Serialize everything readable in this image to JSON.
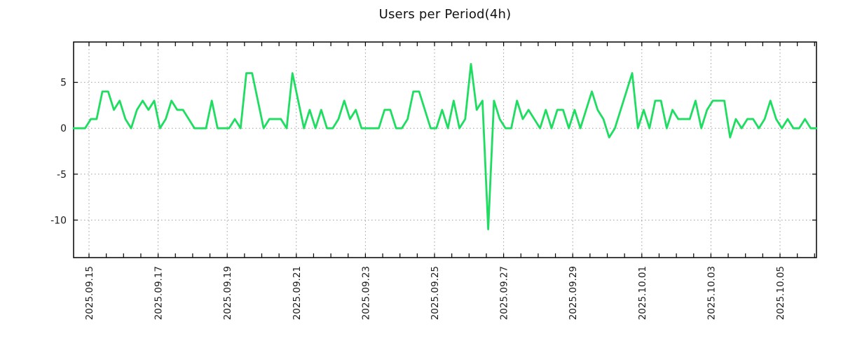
{
  "chart_data": {
    "type": "line",
    "title": "Users per Period(4h)",
    "period_per_point": "4h",
    "series_color": "#1edd60",
    "grid_color": "#9e9e9e",
    "axis_color": "#000000",
    "label_color": "#1a1a1a",
    "x_tick_labels": [
      "2025.09.15",
      "2025.09.17",
      "2025.09.19",
      "2025.09.21",
      "2025.09.23",
      "2025.09.25",
      "2025.09.27",
      "2025.09.29",
      "2025.10.01",
      "2025.10.03",
      "2025.10.05"
    ],
    "y_ticks": [
      5,
      0,
      -5,
      -10
    ],
    "y_tick_labels": [
      "5",
      "0",
      "-5",
      "-10"
    ],
    "ylim": [
      -14.1,
      9.4
    ],
    "grid": true,
    "legend": "none",
    "values": [
      0,
      0,
      0,
      1,
      1,
      4,
      4,
      2,
      3,
      1,
      0,
      2,
      3,
      2,
      3,
      0,
      1,
      3,
      2,
      2,
      1,
      0,
      0,
      0,
      3,
      0,
      0,
      0,
      1,
      0,
      6,
      6,
      3,
      0,
      1,
      1,
      1,
      0,
      6,
      3,
      0,
      2,
      0,
      2,
      0,
      0,
      1,
      3,
      1,
      2,
      0,
      0,
      0,
      0,
      2,
      2,
      0,
      0,
      1,
      4,
      4,
      2,
      0,
      0,
      2,
      0,
      3,
      0,
      1,
      7,
      2,
      3,
      -11,
      3,
      1,
      0,
      0,
      3,
      1,
      2,
      1,
      0,
      2,
      0,
      2,
      2,
      0,
      2,
      0,
      2,
      4,
      2,
      1,
      -1,
      0,
      2,
      4,
      6,
      0,
      2,
      0,
      3,
      3,
      0,
      2,
      1,
      1,
      1,
      3,
      0,
      2,
      3,
      3,
      3,
      -1,
      1,
      0,
      1,
      1,
      0,
      1,
      3,
      1,
      0,
      1,
      0,
      0,
      1,
      0,
      0
    ]
  }
}
